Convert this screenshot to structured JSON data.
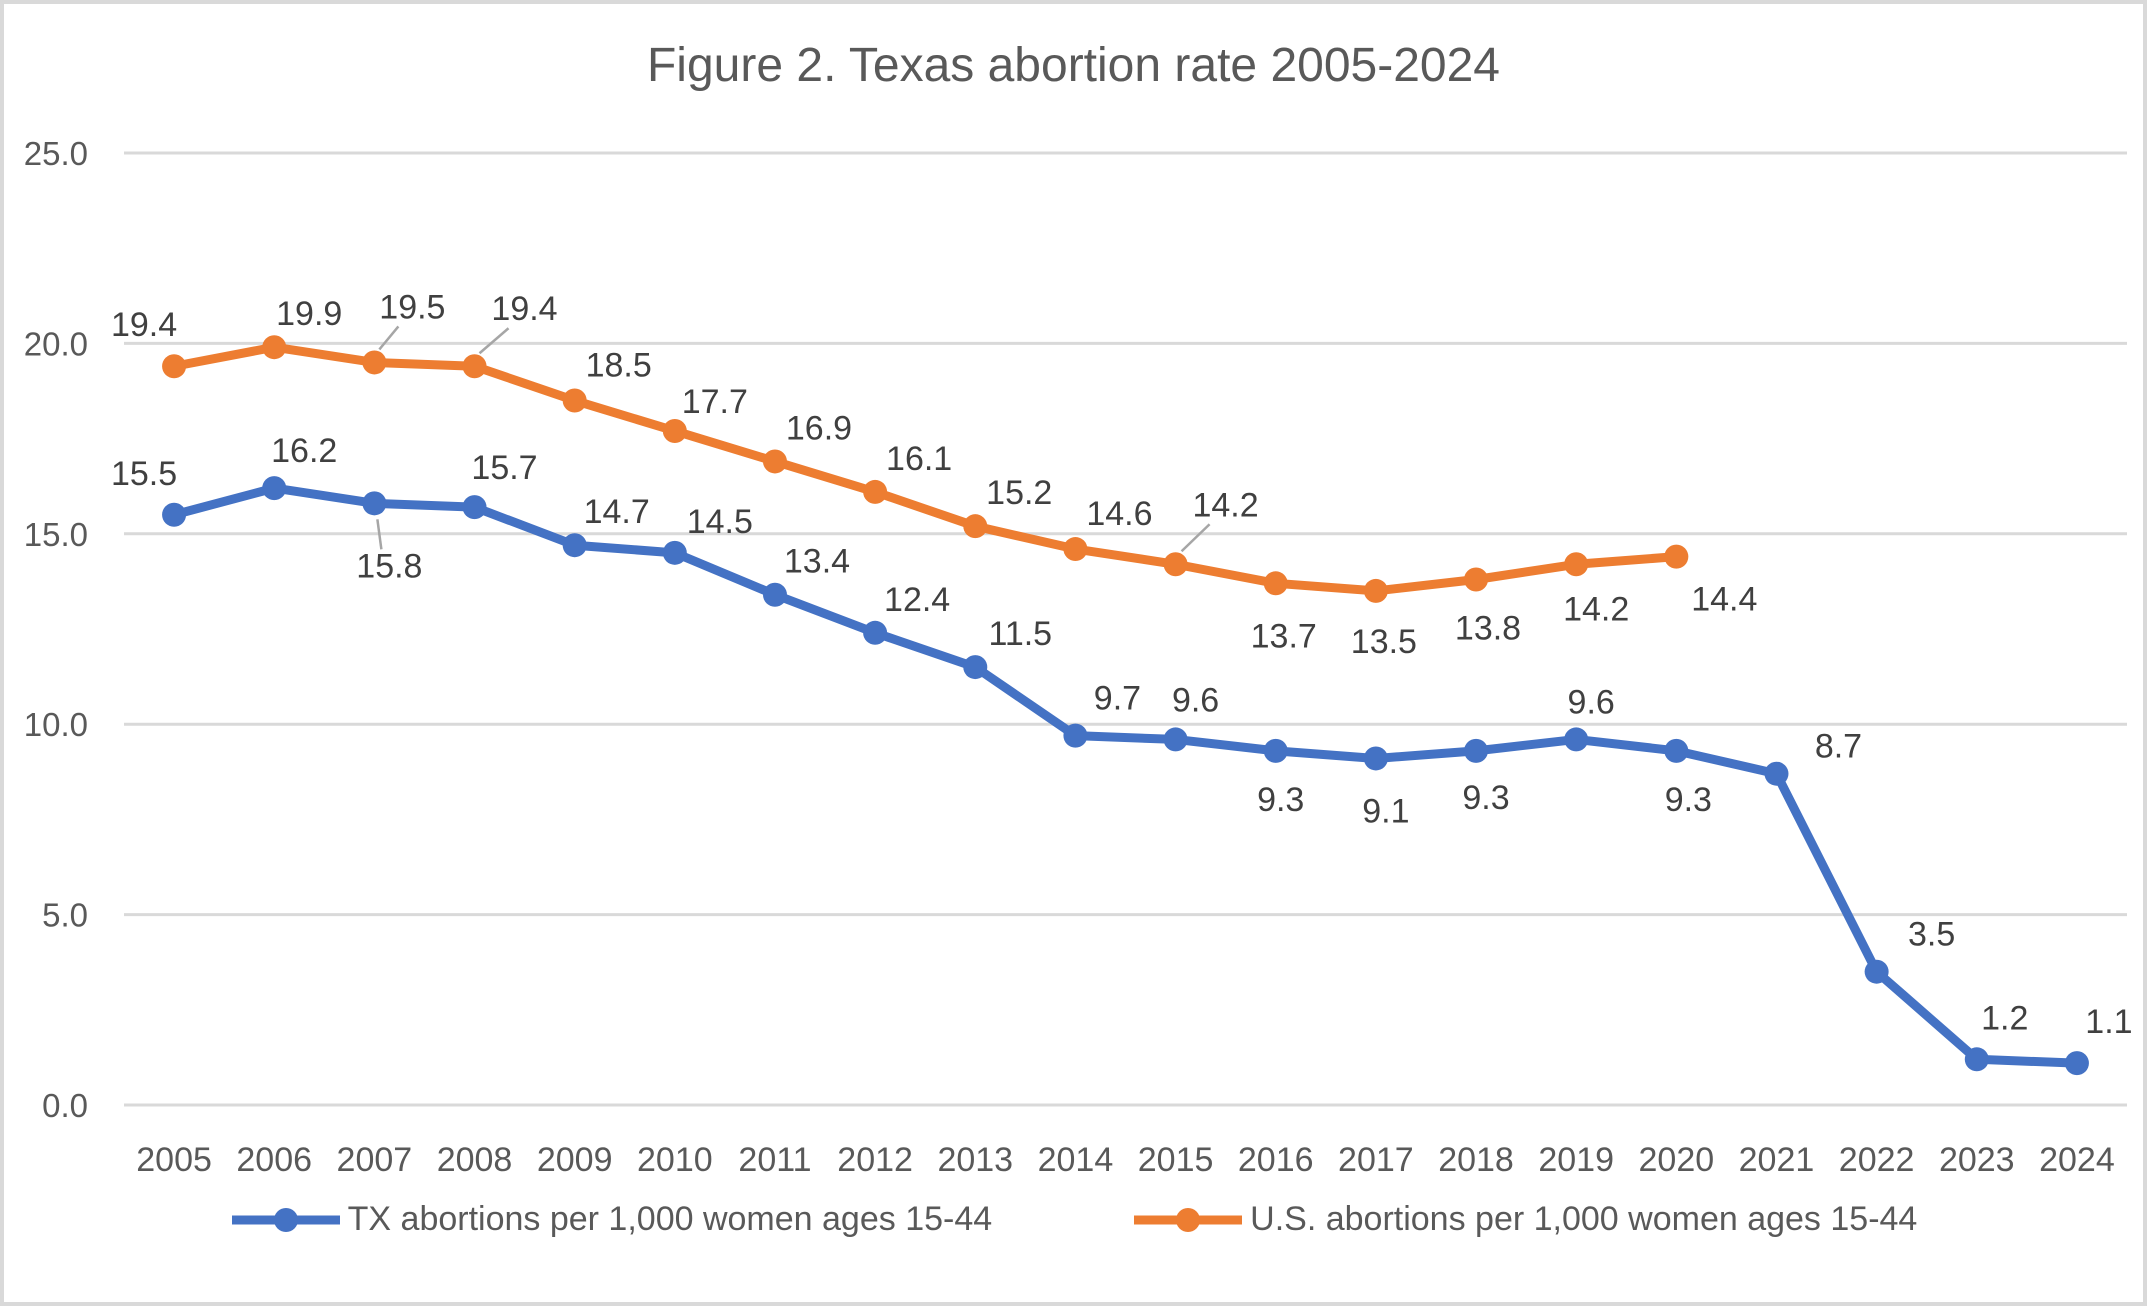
{
  "frame": {
    "background": "#ffffff",
    "border_color": "#d9d9d9"
  },
  "chart_data": {
    "type": "line",
    "title": "Figure 2. Texas abortion rate 2005-2024",
    "categories": [
      "2005",
      "2006",
      "2007",
      "2008",
      "2009",
      "2010",
      "2011",
      "2012",
      "2013",
      "2014",
      "2015",
      "2016",
      "2017",
      "2018",
      "2019",
      "2020",
      "2021",
      "2022",
      "2023",
      "2024"
    ],
    "x_axis": {
      "tick_labels": [
        "2005",
        "2006",
        "2007",
        "2008",
        "2009",
        "2010",
        "2011",
        "2012",
        "2013",
        "2014",
        "2015",
        "2016",
        "2017",
        "2018",
        "2019",
        "2020",
        "2021",
        "2022",
        "2023",
        "2024"
      ]
    },
    "y_axis": {
      "tick_values": [
        0,
        5,
        10,
        15,
        20,
        25
      ],
      "tick_labels": [
        "0.0",
        "5.0",
        "10.0",
        "15.0",
        "20.0",
        "25.0"
      ],
      "range": [
        0,
        25
      ]
    },
    "grid": true,
    "gridline_color": "#d9d9d9",
    "axis_text_color": "#595959",
    "data_label_color": "#404040",
    "leader_line_color": "#a6a6a6",
    "legend_position": "bottom",
    "data_labels": true,
    "series": [
      {
        "name": "U.S. abortions per 1,000 women ages 15-44",
        "color": "#ED7D31",
        "values": [
          19.4,
          19.9,
          19.5,
          19.4,
          18.5,
          17.7,
          16.9,
          16.1,
          15.2,
          14.6,
          14.2,
          13.7,
          13.5,
          13.8,
          14.2,
          14.4,
          null,
          null,
          null,
          null
        ],
        "labels": [
          "19.4",
          "19.9",
          "19.5",
          "19.4",
          "18.5",
          "17.7",
          "16.9",
          "16.1",
          "15.2",
          "14.6",
          "14.2",
          "13.7",
          "13.5",
          "13.8",
          "14.2",
          "14.4"
        ],
        "label_offsets": [
          [
            -30,
            -30
          ],
          [
            35,
            -22
          ],
          [
            38,
            -44
          ],
          [
            50,
            -46
          ],
          [
            44,
            -24
          ],
          [
            40,
            -18
          ],
          [
            44,
            -22
          ],
          [
            44,
            -22
          ],
          [
            44,
            -22
          ],
          [
            44,
            -24
          ],
          [
            50,
            -48
          ],
          [
            8,
            64
          ],
          [
            8,
            62
          ],
          [
            12,
            60
          ],
          [
            20,
            56
          ],
          [
            48,
            54
          ]
        ],
        "leader_lines": [
          {
            "index": 2,
            "from": [
              24,
              -36
            ],
            "to": [
              5,
              -13
            ]
          },
          {
            "index": 3,
            "from": [
              34,
              -38
            ],
            "to": [
              5,
              -13
            ]
          },
          {
            "index": 10,
            "from": [
              34,
              -40
            ],
            "to": [
              6,
              -13
            ]
          }
        ]
      },
      {
        "name": "TX abortions per 1,000 women ages 15-44",
        "color": "#4472C4",
        "values": [
          15.5,
          16.2,
          15.8,
          15.7,
          14.7,
          14.5,
          13.4,
          12.4,
          11.5,
          9.7,
          9.6,
          9.3,
          9.1,
          9.3,
          9.6,
          9.3,
          8.7,
          3.5,
          1.2,
          1.1
        ],
        "labels": [
          "15.5",
          "16.2",
          "15.8",
          "15.7",
          "14.7",
          "14.5",
          "13.4",
          "12.4",
          "11.5",
          "9.7",
          "9.6",
          "9.3",
          "9.1",
          "9.3",
          "9.6",
          "9.3",
          "8.7",
          "3.5",
          "1.2",
          "1.1"
        ],
        "label_offsets": [
          [
            -30,
            -30
          ],
          [
            30,
            -26
          ],
          [
            15,
            74
          ],
          [
            30,
            -28
          ],
          [
            42,
            -22
          ],
          [
            45,
            -20
          ],
          [
            42,
            -22
          ],
          [
            42,
            -22
          ],
          [
            45,
            -22
          ],
          [
            42,
            -26
          ],
          [
            20,
            -28
          ],
          [
            5,
            60
          ],
          [
            10,
            64
          ],
          [
            10,
            58
          ],
          [
            15,
            -26
          ],
          [
            12,
            60
          ],
          [
            62,
            -16
          ],
          [
            55,
            -26
          ],
          [
            28,
            -30
          ],
          [
            32,
            -30
          ]
        ],
        "leader_lines": [
          {
            "index": 2,
            "from": [
              3,
              16
            ],
            "to": [
              7,
              46
            ]
          }
        ]
      }
    ],
    "legend": [
      {
        "label": "TX abortions per 1,000 women ages 15-44",
        "color": "#4472C4"
      },
      {
        "label": "U.S. abortions per 1,000 women ages 15-44",
        "color": "#ED7D31"
      }
    ]
  }
}
